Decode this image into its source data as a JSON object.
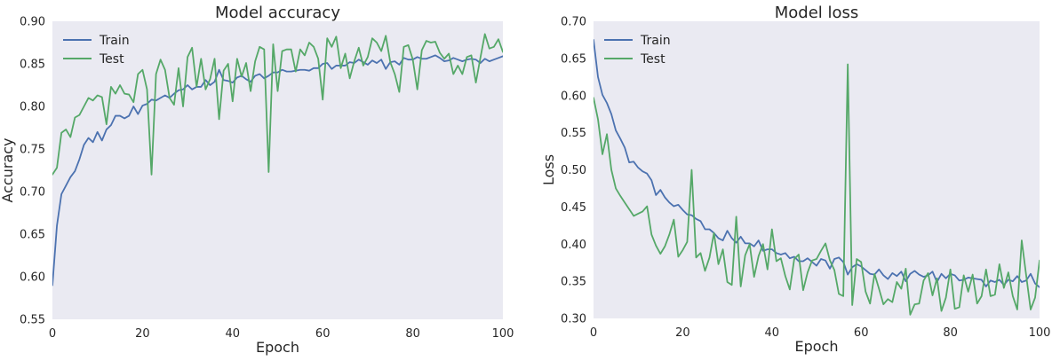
{
  "chart_data": [
    {
      "type": "line",
      "title": "Model accuracy",
      "xlabel": "Epoch",
      "ylabel": "Accuracy",
      "xlim": [
        0,
        100
      ],
      "ylim": [
        0.55,
        0.9
      ],
      "xticks": [
        0,
        20,
        40,
        60,
        80,
        100
      ],
      "yticks": [
        0.55,
        0.6,
        0.65,
        0.7,
        0.75,
        0.8,
        0.85,
        0.9
      ],
      "ytick_decimals": 2,
      "legend": "top-left",
      "grid": false,
      "background": "#eaeaf2",
      "series": [
        {
          "name": "Train",
          "color": "#4c72b0",
          "values": [
            0.59,
            0.66,
            0.697,
            0.707,
            0.717,
            0.724,
            0.738,
            0.755,
            0.763,
            0.758,
            0.77,
            0.76,
            0.773,
            0.778,
            0.789,
            0.789,
            0.786,
            0.789,
            0.8,
            0.791,
            0.801,
            0.803,
            0.808,
            0.807,
            0.81,
            0.813,
            0.81,
            0.815,
            0.819,
            0.82,
            0.825,
            0.82,
            0.823,
            0.823,
            0.831,
            0.825,
            0.829,
            0.843,
            0.831,
            0.83,
            0.828,
            0.834,
            0.836,
            0.832,
            0.829,
            0.836,
            0.838,
            0.833,
            0.836,
            0.84,
            0.84,
            0.843,
            0.841,
            0.841,
            0.842,
            0.843,
            0.843,
            0.842,
            0.845,
            0.845,
            0.85,
            0.851,
            0.844,
            0.848,
            0.848,
            0.848,
            0.852,
            0.851,
            0.855,
            0.852,
            0.849,
            0.854,
            0.851,
            0.855,
            0.844,
            0.852,
            0.853,
            0.849,
            0.857,
            0.855,
            0.855,
            0.858,
            0.856,
            0.856,
            0.858,
            0.86,
            0.857,
            0.853,
            0.854,
            0.857,
            0.855,
            0.853,
            0.855,
            0.856,
            0.855,
            0.851,
            0.856,
            0.853,
            0.855,
            0.857,
            0.859
          ]
        },
        {
          "name": "Test",
          "color": "#55a868",
          "values": [
            0.72,
            0.728,
            0.769,
            0.773,
            0.764,
            0.787,
            0.79,
            0.8,
            0.81,
            0.807,
            0.813,
            0.811,
            0.779,
            0.823,
            0.815,
            0.825,
            0.815,
            0.814,
            0.805,
            0.838,
            0.843,
            0.82,
            0.72,
            0.838,
            0.855,
            0.843,
            0.81,
            0.802,
            0.845,
            0.8,
            0.858,
            0.869,
            0.823,
            0.856,
            0.82,
            0.832,
            0.856,
            0.785,
            0.842,
            0.85,
            0.806,
            0.856,
            0.835,
            0.851,
            0.818,
            0.853,
            0.87,
            0.867,
            0.723,
            0.873,
            0.818,
            0.865,
            0.867,
            0.867,
            0.841,
            0.867,
            0.86,
            0.875,
            0.87,
            0.856,
            0.808,
            0.88,
            0.87,
            0.882,
            0.845,
            0.862,
            0.833,
            0.853,
            0.869,
            0.848,
            0.858,
            0.88,
            0.875,
            0.865,
            0.883,
            0.852,
            0.838,
            0.817,
            0.87,
            0.872,
            0.855,
            0.82,
            0.866,
            0.877,
            0.875,
            0.876,
            0.863,
            0.856,
            0.862,
            0.838,
            0.848,
            0.838,
            0.858,
            0.86,
            0.828,
            0.857,
            0.885,
            0.868,
            0.87,
            0.879,
            0.864
          ]
        }
      ]
    },
    {
      "type": "line",
      "title": "Model loss",
      "xlabel": "Epoch",
      "ylabel": "Loss",
      "xlim": [
        0,
        100
      ],
      "ylim": [
        0.3,
        0.7
      ],
      "xticks": [
        0,
        20,
        40,
        60,
        80,
        100
      ],
      "yticks": [
        0.3,
        0.35,
        0.4,
        0.45,
        0.5,
        0.55,
        0.6,
        0.65,
        0.7
      ],
      "ytick_decimals": 2,
      "legend": "top-left",
      "grid": false,
      "background": "#eaeaf2",
      "series": [
        {
          "name": "Train",
          "color": "#4c72b0",
          "values": [
            0.675,
            0.625,
            0.601,
            0.59,
            0.575,
            0.553,
            0.542,
            0.53,
            0.51,
            0.511,
            0.503,
            0.498,
            0.495,
            0.486,
            0.466,
            0.473,
            0.463,
            0.456,
            0.451,
            0.453,
            0.446,
            0.44,
            0.439,
            0.434,
            0.431,
            0.42,
            0.42,
            0.415,
            0.408,
            0.405,
            0.418,
            0.408,
            0.402,
            0.41,
            0.401,
            0.401,
            0.397,
            0.405,
            0.391,
            0.393,
            0.393,
            0.388,
            0.386,
            0.388,
            0.381,
            0.383,
            0.377,
            0.377,
            0.381,
            0.376,
            0.371,
            0.38,
            0.378,
            0.367,
            0.38,
            0.382,
            0.376,
            0.359,
            0.369,
            0.373,
            0.37,
            0.365,
            0.36,
            0.359,
            0.366,
            0.358,
            0.353,
            0.361,
            0.357,
            0.363,
            0.35,
            0.36,
            0.364,
            0.359,
            0.356,
            0.358,
            0.363,
            0.349,
            0.36,
            0.354,
            0.36,
            0.358,
            0.351,
            0.352,
            0.355,
            0.354,
            0.353,
            0.352,
            0.343,
            0.351,
            0.349,
            0.352,
            0.345,
            0.352,
            0.35,
            0.357,
            0.349,
            0.351,
            0.36,
            0.347,
            0.342
          ]
        },
        {
          "name": "Test",
          "color": "#55a868",
          "values": [
            0.597,
            0.568,
            0.521,
            0.548,
            0.5,
            0.475,
            0.465,
            0.456,
            0.447,
            0.438,
            0.441,
            0.444,
            0.451,
            0.413,
            0.398,
            0.387,
            0.397,
            0.413,
            0.433,
            0.383,
            0.392,
            0.403,
            0.5,
            0.382,
            0.388,
            0.364,
            0.382,
            0.415,
            0.373,
            0.393,
            0.349,
            0.345,
            0.437,
            0.343,
            0.385,
            0.4,
            0.356,
            0.384,
            0.4,
            0.366,
            0.42,
            0.377,
            0.381,
            0.357,
            0.339,
            0.38,
            0.386,
            0.338,
            0.362,
            0.378,
            0.38,
            0.391,
            0.401,
            0.378,
            0.365,
            0.333,
            0.33,
            0.642,
            0.318,
            0.38,
            0.376,
            0.336,
            0.32,
            0.36,
            0.34,
            0.319,
            0.326,
            0.322,
            0.349,
            0.34,
            0.367,
            0.305,
            0.319,
            0.32,
            0.351,
            0.361,
            0.331,
            0.354,
            0.31,
            0.328,
            0.366,
            0.313,
            0.315,
            0.358,
            0.336,
            0.359,
            0.32,
            0.33,
            0.366,
            0.33,
            0.332,
            0.373,
            0.341,
            0.362,
            0.33,
            0.312,
            0.405,
            0.358,
            0.312,
            0.328,
            0.378
          ]
        }
      ]
    }
  ]
}
